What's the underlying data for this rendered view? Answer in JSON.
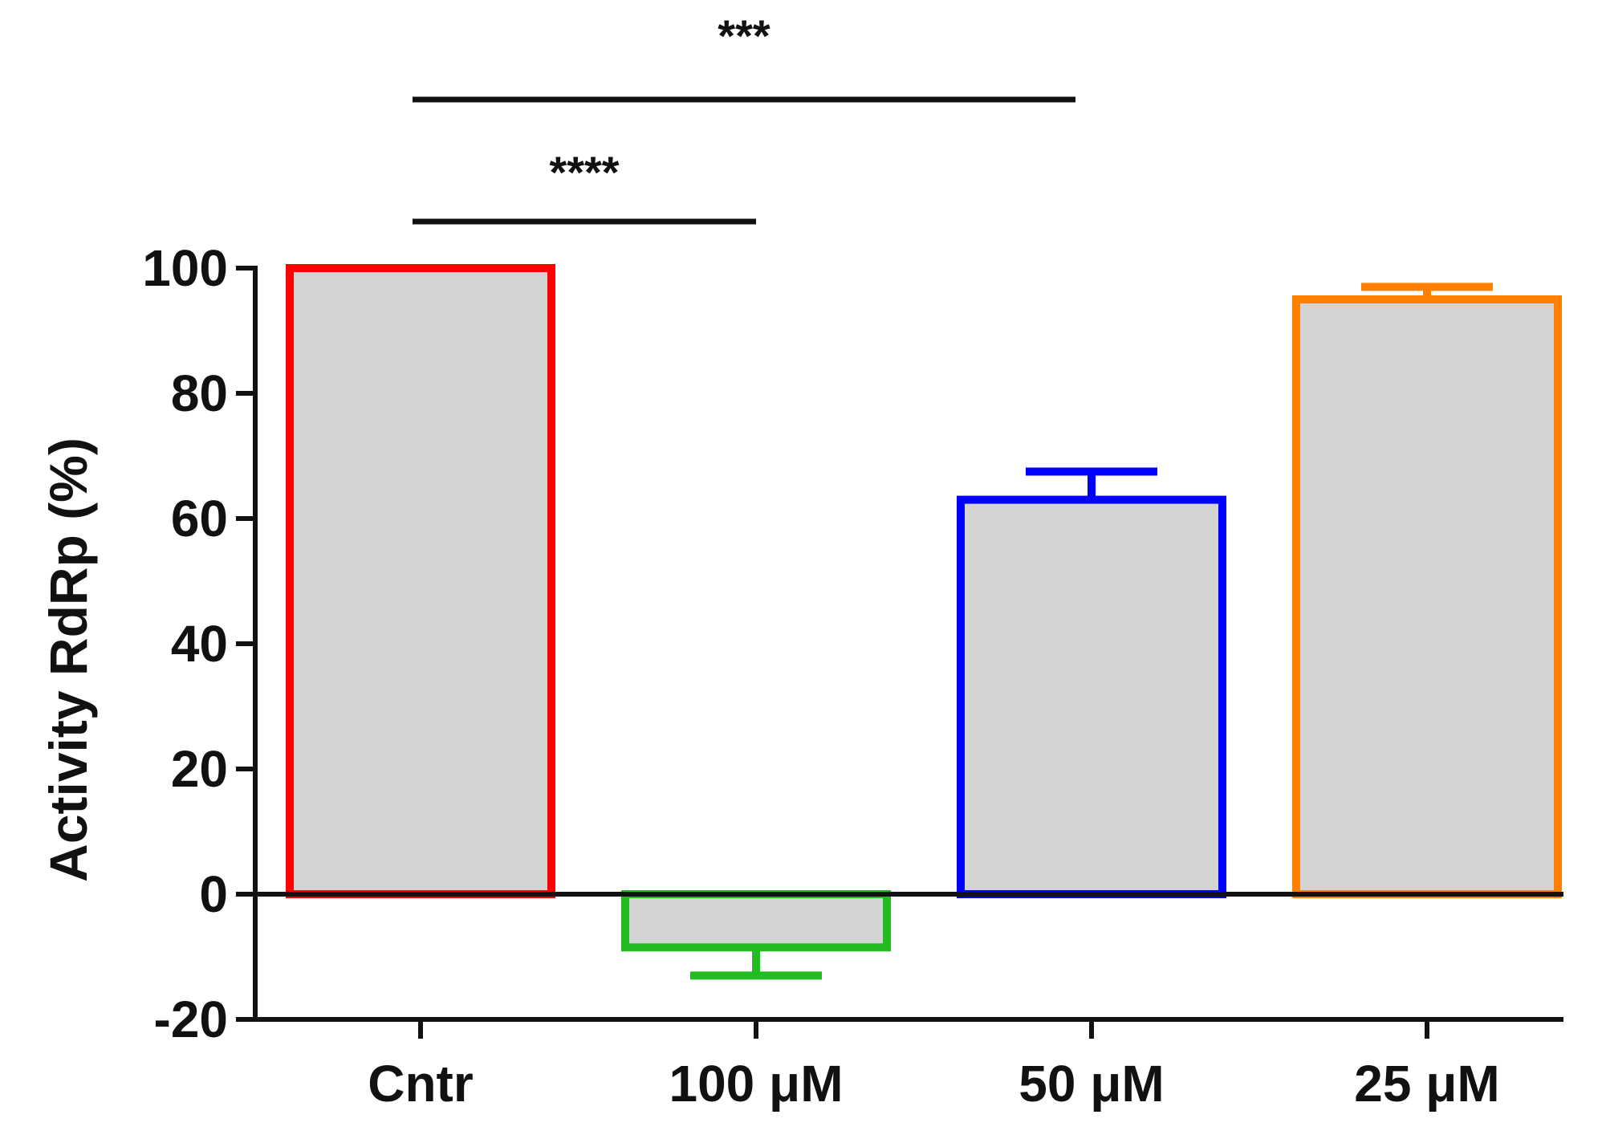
{
  "chart_data": {
    "type": "bar",
    "title": "",
    "xlabel": "",
    "ylabel": "Activity RdRp (%)",
    "ylim": [
      -20,
      100
    ],
    "yticks": [
      -20,
      0,
      20,
      40,
      60,
      80,
      100
    ],
    "categories": [
      "Cntr",
      "100 μM",
      "50 μM",
      "25 μM"
    ],
    "values": [
      100,
      -8.5,
      63,
      95
    ],
    "errors": [
      0,
      4.5,
      4.5,
      2
    ],
    "bar_fill": "#d3d3d3",
    "bar_colors": [
      "#ff0000",
      "#22bb22",
      "#0000ff",
      "#ff8000"
    ],
    "grid": false,
    "significance": [
      {
        "from": 0,
        "to": 2,
        "label": "***"
      },
      {
        "from": 0,
        "to": 1,
        "label": "****"
      }
    ]
  }
}
